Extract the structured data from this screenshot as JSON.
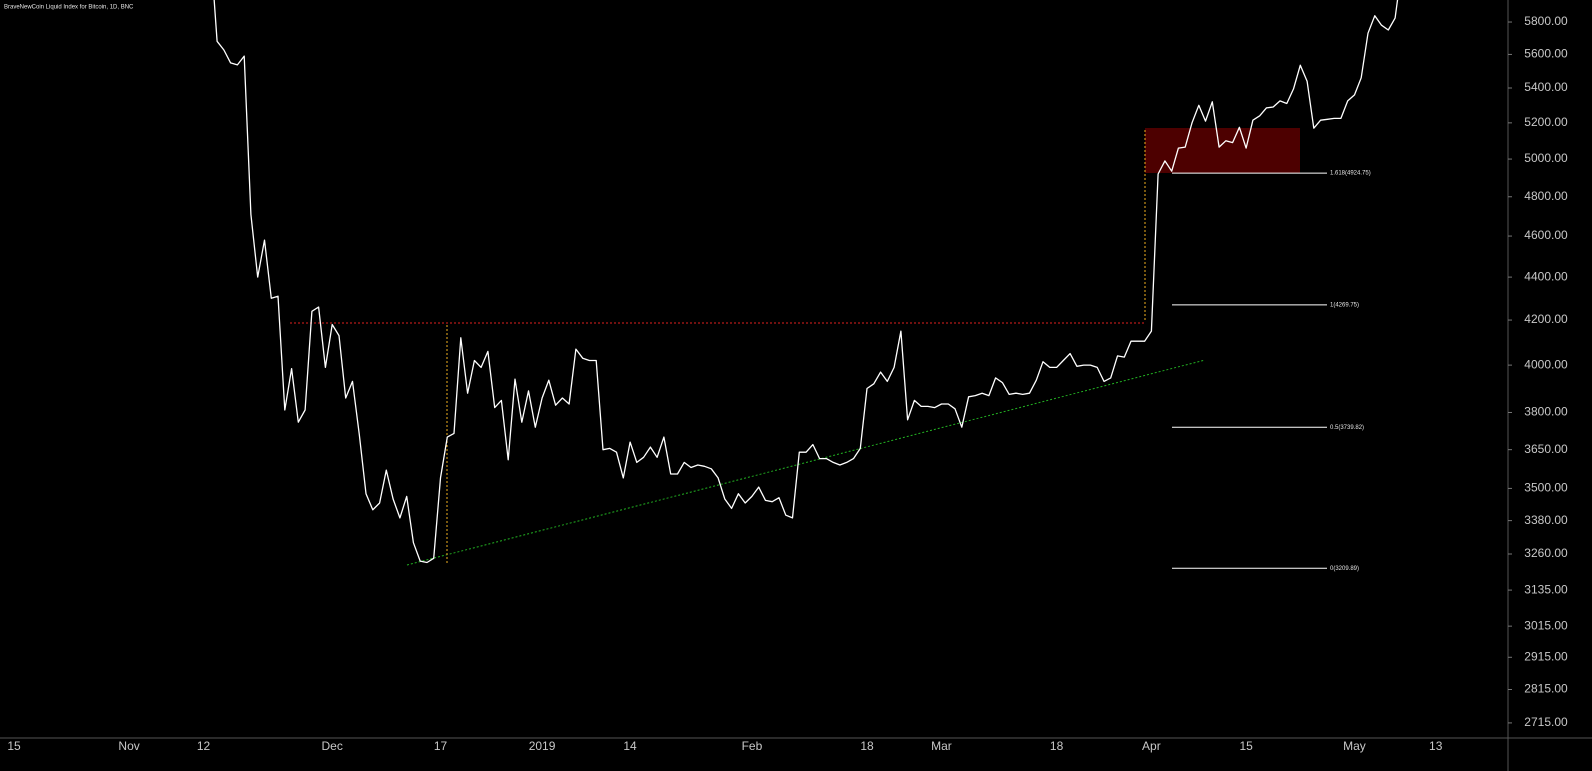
{
  "chart_data": {
    "type": "line",
    "title": "BraveNewCoin Liquid Index for Bitcoin, 1D, BNC",
    "log_scale": true,
    "grid": false,
    "categories": [
      "15",
      null,
      null,
      null,
      null,
      null,
      null,
      null,
      null,
      null,
      null,
      null,
      null,
      null,
      null,
      null,
      null,
      "Nov",
      null,
      null,
      null,
      null,
      null,
      null,
      null,
      null,
      null,
      null,
      "12",
      null,
      null,
      null,
      null,
      null,
      null,
      null,
      null,
      null,
      null,
      null,
      null,
      null,
      null,
      null,
      null,
      null,
      null,
      "Dec",
      null,
      null,
      null,
      null,
      null,
      null,
      null,
      null,
      null,
      null,
      null,
      null,
      null,
      null,
      null,
      "17",
      null,
      null,
      null,
      null,
      null,
      null,
      null,
      null,
      null,
      null,
      null,
      null,
      null,
      null,
      "2019",
      null,
      null,
      null,
      null,
      null,
      null,
      null,
      null,
      null,
      null,
      null,
      null,
      "14",
      null,
      null,
      null,
      null,
      null,
      null,
      null,
      null,
      null,
      null,
      null,
      null,
      null,
      null,
      null,
      null,
      null,
      "Feb",
      null,
      null,
      null,
      null,
      null,
      null,
      null,
      null,
      null,
      null,
      null,
      null,
      null,
      null,
      null,
      null,
      "18",
      null,
      null,
      null,
      null,
      null,
      null,
      null,
      null,
      null,
      null,
      "Mar",
      null,
      null,
      null,
      null,
      null,
      null,
      null,
      null,
      null,
      null,
      null,
      null,
      null,
      null,
      null,
      null,
      "18",
      null,
      null,
      null,
      null,
      null,
      null,
      null,
      null,
      null,
      null,
      null,
      null,
      null,
      "Apr",
      null,
      null,
      null,
      null,
      null,
      null,
      null,
      null,
      null,
      null,
      null,
      null,
      null,
      "15",
      null,
      null,
      null,
      null,
      null,
      null,
      null,
      null,
      null,
      null,
      null,
      null,
      null,
      null,
      null,
      "May",
      null,
      null,
      null,
      null,
      null,
      null,
      null,
      null,
      null,
      null,
      null,
      "13"
    ],
    "series": [
      {
        "color": "#ffffff",
        "values": [
          null,
          null,
          null,
          null,
          null,
          null,
          null,
          null,
          null,
          null,
          null,
          null,
          null,
          null,
          null,
          null,
          null,
          null,
          null,
          null,
          null,
          null,
          null,
          null,
          null,
          null,
          null,
          null,
          null,
          6300,
          5680,
          5627,
          5549,
          5537,
          5590,
          4709,
          4400,
          4580,
          4300,
          4310,
          3810,
          3985,
          3760,
          3810,
          4240,
          4260,
          3990,
          4180,
          4130,
          3860,
          3930,
          3710,
          3480,
          3420,
          3445,
          3570,
          3460,
          3390,
          3470,
          3300,
          3235,
          3230,
          3245,
          3540,
          3700,
          3715,
          4120,
          3880,
          4020,
          3990,
          4060,
          3820,
          3850,
          3610,
          3940,
          3760,
          3890,
          3740,
          3860,
          3935,
          3830,
          3860,
          3835,
          4070,
          4030,
          4020,
          4020,
          3650,
          3655,
          3640,
          3540,
          3680,
          3600,
          3620,
          3660,
          3620,
          3700,
          3555,
          3555,
          3600,
          3580,
          3590,
          3585,
          3575,
          3540,
          3460,
          3425,
          3480,
          3445,
          3470,
          3505,
          3455,
          3450,
          3465,
          3400,
          3390,
          3640,
          3640,
          3670,
          3615,
          3615,
          3600,
          3590,
          3600,
          3615,
          3655,
          3900,
          3920,
          3970,
          3930,
          3990,
          4150,
          3770,
          3850,
          3825,
          3825,
          3820,
          3835,
          3835,
          3815,
          3740,
          3865,
          3870,
          3880,
          3870,
          3945,
          3925,
          3875,
          3880,
          3875,
          3880,
          3935,
          4015,
          3990,
          3990,
          4020,
          4050,
          3995,
          4000,
          4000,
          3990,
          3930,
          3945,
          4040,
          4035,
          4105,
          4105,
          4105,
          4150,
          4920,
          4990,
          4935,
          5060,
          5065,
          5200,
          5300,
          5210,
          5320,
          5065,
          5100,
          5090,
          5175,
          5060,
          5215,
          5240,
          5285,
          5290,
          5325,
          5310,
          5395,
          5535,
          5440,
          5170,
          5215,
          5220,
          5225,
          5225,
          5325,
          5360,
          5460,
          5730,
          5840,
          5780,
          5750,
          5825,
          6150,
          null,
          null,
          null,
          null,
          null
        ]
      }
    ],
    "ylim": [
      2671,
      5940
    ],
    "yticks": [
      {
        "value": 5800,
        "label": "5800.00"
      },
      {
        "value": 5600,
        "label": "5600.00"
      },
      {
        "value": 5400,
        "label": "5400.00"
      },
      {
        "value": 5200,
        "label": "5200.00"
      },
      {
        "value": 5000,
        "label": "5000.00"
      },
      {
        "value": 4800,
        "label": "4800.00"
      },
      {
        "value": 4600,
        "label": "4600.00"
      },
      {
        "value": 4400,
        "label": "4400.00"
      },
      {
        "value": 4200,
        "label": "4200.00"
      },
      {
        "value": 4000,
        "label": "4000.00"
      },
      {
        "value": 3800,
        "label": "3800.00"
      },
      {
        "value": 3650,
        "label": "3650.00"
      },
      {
        "value": 3500,
        "label": "3500.00"
      },
      {
        "value": 3380,
        "label": "3380.00"
      },
      {
        "value": 3260,
        "label": "3260.00"
      },
      {
        "value": 3135,
        "label": "3135.00"
      },
      {
        "value": 3015,
        "label": "3015.00"
      },
      {
        "value": 2915,
        "label": "2915.00"
      },
      {
        "value": 2815,
        "label": "2815.00"
      },
      {
        "value": 2715,
        "label": "2715.00"
      }
    ],
    "fib_levels": [
      {
        "value": 4924.75,
        "label": "1.618(4924.75)"
      },
      {
        "value": 4269.75,
        "label": "1(4269.75)"
      },
      {
        "value": 3739.82,
        "label": "0.5(3739.82)"
      },
      {
        "value": 3209.89,
        "label": "0(3209.89)"
      }
    ]
  }
}
